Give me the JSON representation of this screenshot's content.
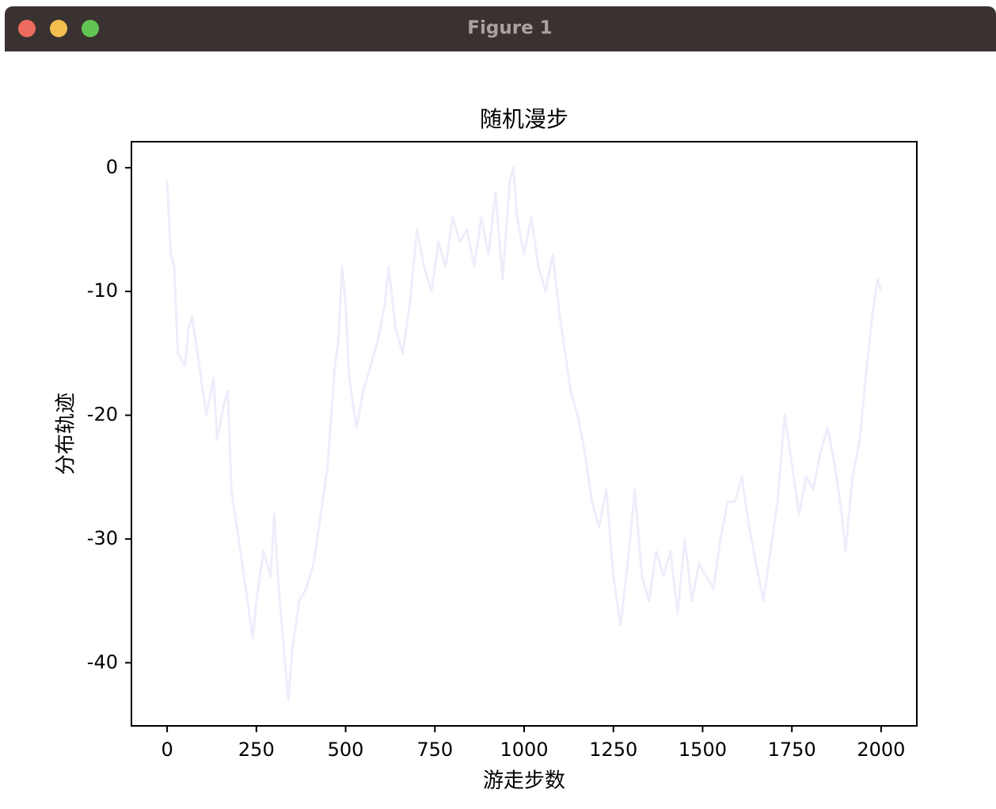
{
  "window": {
    "title": "Figure 1"
  },
  "chart_data": {
    "type": "line",
    "title": "随机漫步",
    "x_label": "游走步数",
    "y_label": "分布轨迹",
    "x": [
      0,
      10,
      20,
      30,
      50,
      60,
      70,
      90,
      110,
      130,
      140,
      160,
      170,
      180,
      200,
      220,
      240,
      250,
      270,
      290,
      300,
      310,
      330,
      340,
      350,
      370,
      390,
      410,
      430,
      450,
      460,
      470,
      480,
      490,
      500,
      510,
      530,
      550,
      570,
      590,
      610,
      620,
      640,
      660,
      680,
      700,
      720,
      740,
      760,
      780,
      800,
      820,
      840,
      860,
      880,
      900,
      920,
      940,
      960,
      970,
      980,
      1000,
      1020,
      1040,
      1060,
      1080,
      1100,
      1110,
      1130,
      1150,
      1170,
      1190,
      1210,
      1230,
      1250,
      1270,
      1290,
      1310,
      1330,
      1350,
      1370,
      1390,
      1410,
      1430,
      1450,
      1470,
      1490,
      1510,
      1530,
      1550,
      1570,
      1590,
      1610,
      1630,
      1650,
      1670,
      1690,
      1710,
      1730,
      1750,
      1770,
      1790,
      1810,
      1830,
      1850,
      1870,
      1890,
      1900,
      1920,
      1940,
      1960,
      1975,
      1990,
      2000
    ],
    "values": [
      -1,
      -7,
      -8,
      -15,
      -16,
      -13,
      -12,
      -16,
      -20,
      -17,
      -22,
      -19,
      -18,
      -26,
      -30,
      -34,
      -38,
      -35,
      -31,
      -33,
      -28,
      -33,
      -40,
      -43,
      -39,
      -35,
      -34,
      -32,
      -28,
      -24,
      -20,
      -16,
      -14,
      -8,
      -11,
      -17,
      -21,
      -18,
      -16,
      -14,
      -11,
      -8,
      -13,
      -15,
      -11,
      -5,
      -8,
      -10,
      -6,
      -8,
      -4,
      -6,
      -5,
      -8,
      -4,
      -7,
      -2,
      -9,
      -1,
      0,
      -4,
      -7,
      -4,
      -8,
      -10,
      -7,
      -12,
      -14,
      -18,
      -20,
      -23,
      -27,
      -29,
      -26,
      -33,
      -37,
      -32,
      -26,
      -33,
      -35,
      -31,
      -33,
      -31,
      -36,
      -30,
      -35,
      -32,
      -33,
      -34,
      -30,
      -27,
      -27,
      -25,
      -29,
      -32,
      -35,
      -31,
      -27,
      -20,
      -24,
      -28,
      -25,
      -26,
      -23,
      -21,
      -24,
      -28,
      -31,
      -25,
      -22,
      -16,
      -12,
      -9,
      -10
    ],
    "color": "#efedfb",
    "xlim": [
      -100,
      2100
    ],
    "ylim": [
      -45.1,
      2.1
    ],
    "xticks": [
      0,
      250,
      500,
      750,
      1000,
      1250,
      1500,
      1750,
      2000
    ],
    "yticks": [
      0,
      -10,
      -20,
      -30,
      -40
    ]
  }
}
